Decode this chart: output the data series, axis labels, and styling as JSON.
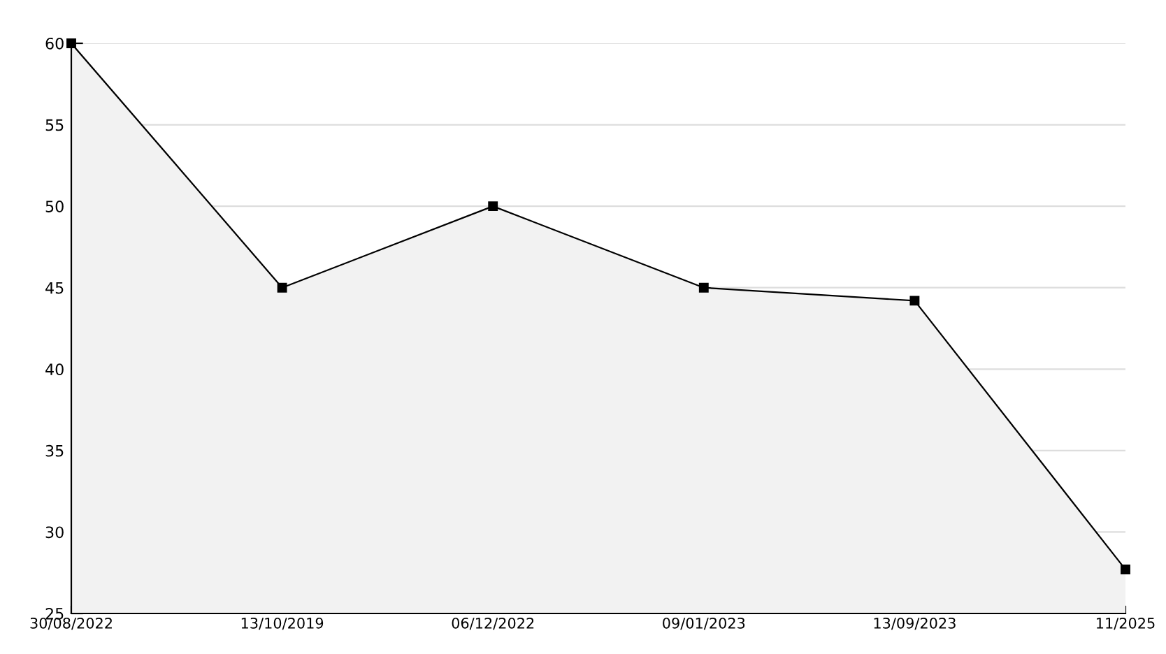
{
  "chart_data": {
    "type": "area",
    "categories": [
      "30/08/2022",
      "13/10/2019",
      "06/12/2022",
      "09/01/2023",
      "13/09/2023",
      "11/2025"
    ],
    "series": [
      {
        "color": "#000000",
        "values": [
          60,
          45,
          50,
          45,
          44.2,
          27.7
        ]
      }
    ],
    "ylim": [
      25,
      60
    ],
    "yticks": [
      25,
      30,
      35,
      40,
      45,
      50,
      55,
      60
    ],
    "grid": "y",
    "marker": "square",
    "line_style": "solid"
  }
}
